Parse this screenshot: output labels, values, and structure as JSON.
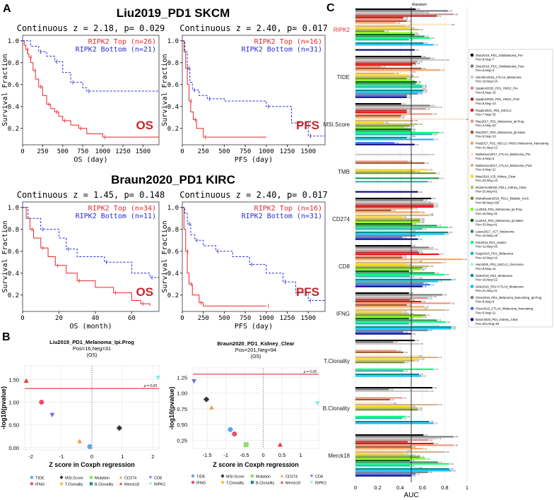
{
  "panel_labels": {
    "a": "A",
    "b": "B",
    "c": "C"
  },
  "colors": {
    "top": "#e8262a",
    "bottom": "#2b2bd6",
    "pline": "#d81e1e",
    "random": "#222222"
  },
  "chart_data": [
    {
      "type": "line",
      "panel": "A",
      "group_title": "Liu2019_PD1 SKCM",
      "title": "Continuous z = 2.18, p= 0.029",
      "xlabel": "OS (day)",
      "ylabel": "Survival Fraction",
      "xlim": [
        0,
        1700
      ],
      "ylim": [
        0.05,
        1.05
      ],
      "xticks": [
        0,
        250,
        500,
        750,
        1000,
        1250,
        1500
      ],
      "yticks": [
        0.2,
        0.4,
        0.6,
        0.8,
        1.0
      ],
      "endpoint": "OS",
      "series": [
        {
          "name": "RIPK2 Top (n=26)",
          "color": "#e8262a",
          "x": [
            0,
            20,
            40,
            60,
            80,
            100,
            130,
            160,
            200,
            250,
            300,
            350,
            400,
            450,
            500,
            600,
            700,
            800,
            1000,
            1700
          ],
          "y": [
            1,
            0.96,
            0.92,
            0.88,
            0.85,
            0.8,
            0.73,
            0.65,
            0.58,
            0.5,
            0.42,
            0.38,
            0.35,
            0.31,
            0.27,
            0.23,
            0.2,
            0.15,
            0.12,
            0.12
          ]
        },
        {
          "name": "RIPK2 Bottom (n=21)",
          "color": "#2b2bd6",
          "x": [
            0,
            100,
            200,
            300,
            400,
            500,
            600,
            750,
            800,
            1700
          ],
          "y": [
            1,
            0.95,
            0.9,
            0.86,
            0.81,
            0.71,
            0.62,
            0.57,
            0.54,
            0.54
          ]
        }
      ]
    },
    {
      "type": "line",
      "panel": "A",
      "title": "Continuous z = 2.40, p= 0.017",
      "xlabel": "PFS (day)",
      "ylabel": "Survival Fraction",
      "xlim": [
        0,
        1700
      ],
      "ylim": [
        0.05,
        1.05
      ],
      "xticks": [
        0,
        250,
        500,
        750,
        1000,
        1250,
        1500
      ],
      "yticks": [
        0.2,
        0.4,
        0.6,
        0.8,
        1.0
      ],
      "endpoint": "PFS",
      "series": [
        {
          "name": "RIPK2 Top (n=16)",
          "color": "#e8262a",
          "x": [
            0,
            20,
            40,
            60,
            80,
            100,
            130,
            170,
            250,
            1000
          ],
          "y": [
            1,
            0.9,
            0.75,
            0.6,
            0.45,
            0.35,
            0.28,
            0.2,
            0.12,
            0.12
          ]
        },
        {
          "name": "RIPK2 Bottom (n=31)",
          "color": "#2b2bd6",
          "x": [
            0,
            30,
            60,
            90,
            120,
            200,
            300,
            500,
            1000,
            1300,
            1500,
            1700
          ],
          "y": [
            1,
            0.9,
            0.75,
            0.62,
            0.55,
            0.5,
            0.47,
            0.45,
            0.4,
            0.25,
            0.13,
            0.13
          ]
        }
      ]
    },
    {
      "type": "line",
      "panel": "A",
      "group_title": "Braun2020_PD1 KIRC",
      "title": "Continuous z = 1.45, p= 0.148",
      "xlabel": "OS (month)",
      "ylabel": "Survival Fraction",
      "xlim": [
        0,
        75
      ],
      "ylim": [
        0.05,
        1.05
      ],
      "xticks": [
        0,
        20,
        40,
        60
      ],
      "yticks": [
        0.2,
        0.4,
        0.6,
        0.8,
        1.0
      ],
      "endpoint": "OS",
      "series": [
        {
          "name": "RIPK2 Top (n=34)",
          "color": "#e8262a",
          "x": [
            0,
            2,
            4,
            6,
            10,
            14,
            18,
            24,
            30,
            40,
            50,
            60,
            65,
            70
          ],
          "y": [
            1,
            0.9,
            0.8,
            0.72,
            0.63,
            0.55,
            0.47,
            0.4,
            0.33,
            0.27,
            0.22,
            0.15,
            0.12,
            0.1
          ]
        },
        {
          "name": "RIPK2 Bottom (n=11)",
          "color": "#2b2bd6",
          "x": [
            0,
            3,
            10,
            20,
            24,
            30,
            45,
            60,
            70,
            75
          ],
          "y": [
            1,
            0.9,
            0.8,
            0.72,
            0.62,
            0.55,
            0.5,
            0.4,
            0.36,
            0.36
          ]
        }
      ]
    },
    {
      "type": "line",
      "panel": "A",
      "title": "Continuous z = 2.40, p= 0.017",
      "xlabel": "PFS (day)",
      "ylabel": "Survival Fraction",
      "xlim": [
        0,
        1700
      ],
      "ylim": [
        0.05,
        1.05
      ],
      "xticks": [
        0,
        250,
        500,
        750,
        1000,
        1250,
        1500
      ],
      "yticks": [
        0.2,
        0.4,
        0.6,
        0.8,
        1.0
      ],
      "endpoint": "PFS",
      "series": [
        {
          "name": "RIPK2 Top (n=16)",
          "color": "#e8262a",
          "x": [
            0,
            20,
            40,
            60,
            80,
            120,
            200,
            250,
            1000
          ],
          "y": [
            1,
            0.8,
            0.6,
            0.4,
            0.3,
            0.2,
            0.13,
            0.1,
            0.1
          ]
        },
        {
          "name": "RIPK2 Bottom (n=31)",
          "color": "#2b2bd6",
          "x": [
            0,
            30,
            60,
            100,
            150,
            250,
            400,
            600,
            800,
            1000,
            1200,
            1350,
            1500,
            1700
          ],
          "y": [
            1,
            0.95,
            0.85,
            0.75,
            0.7,
            0.65,
            0.6,
            0.55,
            0.48,
            0.4,
            0.32,
            0.22,
            0.15,
            0.15
          ]
        }
      ]
    },
    {
      "type": "scatter",
      "panel": "B",
      "title": "Liu2019_PD1_Melanoma_Ipi.Prog",
      "subtitle": "Pos=16,Neg=31",
      "subtitle2": "(OS)",
      "xlabel": "Z score in Coxph regression",
      "ylabel": "-log10(pvalue)",
      "xlim": [
        -2.2,
        2.2
      ],
      "ylim": [
        -0.05,
        1.8
      ],
      "xticks": [
        -2,
        -1,
        0,
        1,
        2
      ],
      "yticks": [
        0.0,
        0.5,
        1.0,
        1.5
      ],
      "ytick_labels": [
        "0.00",
        "0.50",
        "1.00",
        "1.50"
      ],
      "threshold": {
        "y": 1.301,
        "label": "p = 0.05"
      },
      "points": [
        {
          "name": "TIDE",
          "x": -0.07,
          "y": 0.02
        },
        {
          "name": "IFNG",
          "x": -1.65,
          "y": 1.0
        },
        {
          "name": "MSI.Score",
          "x": 0.9,
          "y": 0.43
        },
        {
          "name": "CD274",
          "x": -0.4,
          "y": 0.14
        },
        {
          "name": "CD8",
          "x": -1.3,
          "y": 0.72
        },
        {
          "name": "Merck18",
          "x": -2.15,
          "y": 1.47
        },
        {
          "name": "RIPK2",
          "x": 2.17,
          "y": 1.54
        }
      ]
    },
    {
      "type": "scatter",
      "panel": "B",
      "title": "Braun2020_PD1_Kidney_Clear",
      "subtitle": "Pos=201,Neg=94",
      "subtitle2": "(OS)",
      "xlabel": "Z score in Coxph regression",
      "ylabel": "-log10(pvalue)",
      "xlim": [
        -1.88,
        1.48
      ],
      "ylim": [
        0.12,
        1.4
      ],
      "xticks": [
        -1.5,
        -1,
        -0.5,
        0,
        0.5,
        1
      ],
      "yticks": [
        0.25,
        0.5,
        0.75,
        1.0,
        1.25
      ],
      "ytick_labels": [
        "0.25",
        "0.50",
        "0.75",
        "1.00",
        "1.25"
      ],
      "threshold": {
        "y": 1.301,
        "label": "p = 0.05"
      },
      "points": [
        {
          "name": "TIDE",
          "x": -0.88,
          "y": 0.42
        },
        {
          "name": "IFNG",
          "x": -0.77,
          "y": 0.35
        },
        {
          "name": "MSI.Score",
          "x": -1.52,
          "y": 0.9
        },
        {
          "name": "Mutation",
          "x": -0.46,
          "y": 0.18
        },
        {
          "name": "CD274",
          "x": -1.38,
          "y": 0.77
        },
        {
          "name": "CD8",
          "x": -1.85,
          "y": 1.19
        },
        {
          "name": "Merck18",
          "x": 0.45,
          "y": 0.18
        },
        {
          "name": "RIPK2",
          "x": 1.45,
          "y": 0.84
        }
      ]
    },
    {
      "type": "bar",
      "panel": "C",
      "orientation": "horizontal",
      "xlabel": "AUC",
      "xlim": [
        0,
        1
      ],
      "xticks": [
        0,
        0.2,
        0.4,
        0.6,
        0.8,
        1
      ],
      "xtick_labels": [
        "0",
        "0.2",
        "0.4",
        "0.6",
        "0.8",
        "1"
      ],
      "reference": {
        "x": 0.5,
        "label": "Random"
      },
      "categories": [
        "RIPK2",
        "TIDE",
        "MSI.Score",
        "TMB",
        "CD274",
        "CD8",
        "IFNG",
        "T.Clonality",
        "B.Clonality",
        "Merck18"
      ],
      "highlight_category": "RIPK2",
      "series": [
        {
          "name": "Zhao2019_PD1_Glioblastoma_Pre",
          "legend_sub": "Pos=8,Neg=7",
          "color": "#000000"
        },
        {
          "name": "Zhao2019_PD1_Glioblastoma_Post",
          "legend_sub": "Pos=6,Neg=3",
          "color": "#777777"
        },
        {
          "name": "VanAllen2015_CTLA4_Melanoma",
          "legend_sub": "Pos=19,Neg=23",
          "color": "#c8c8c8"
        },
        {
          "name": "Uppaluri2020_PD1_HNSC_Pre",
          "legend_sub": "Pos=8,Neg=15",
          "color": "#c48f8f"
        },
        {
          "name": "Uppaluri2020_PD1_HNSC_Post",
          "legend_sub": "Pos=8,Neg=13",
          "color": "#b22222"
        },
        {
          "name": "Ruppin2021_PD1_NSCLC",
          "legend_sub": "Pos=7,Neg=15",
          "color": "#ee1111"
        },
        {
          "name": "Riaz2017_PD1_Melanoma_Ipi.Prog",
          "legend_sub": "Pos=4,Neg=22",
          "color": "#e9967a"
        },
        {
          "name": "Riaz2017_PD1_Melanoma_Ipi.Naive",
          "legend_sub": "Pos=6,Neg=19",
          "color": "#a0522d"
        },
        {
          "name": "Prat2017_PD1_NSCLC-HNSC-Melanoma_Nanostring",
          "legend_sub": "Pos=21,Neg=12",
          "color": "#f4a460"
        },
        {
          "name": "Nathanson2017_CTLA4_Melanoma_Pre",
          "legend_sub": "Pos=4,Neg=5",
          "color": "#fde4c4"
        },
        {
          "name": "Nathanson2017_CTLA4_Melanoma_Post",
          "legend_sub": "Pos=4,Neg=11",
          "color": "#d2b48c"
        },
        {
          "name": "Miao2018_ICB_Kidney_Clear",
          "legend_sub": "Pos=20,Neg=13",
          "color": "#ffd700"
        },
        {
          "name": "McDermott2018_PDL1_Kidney_Clear",
          "legend_sub": "Pos=20,Neg=61",
          "color": "#bdb76b"
        },
        {
          "name": "Mariathasan2018_PDL1_Bladder_mUC",
          "legend_sub": "Pos=68,Neg=230",
          "color": "#6b8e23"
        },
        {
          "name": "Liu2019_PD1_Melanoma_Ipi.Prog",
          "legend_sub": "Pos=16,Neg=31",
          "color": "#7cfc00"
        },
        {
          "name": "Liu2019_PD1_Melanoma_Ipi.Naive",
          "legend_sub": "Pos=33,Neg=41",
          "color": "#006400"
        },
        {
          "name": "Lauss2017_ACT_Melanoma",
          "legend_sub": "Pos=10,Neg=15",
          "color": "#2e8b57"
        },
        {
          "name": "Kim2018_PD1_Gastric",
          "legend_sub": "Pos=12,Neg=33",
          "color": "#00ff7f"
        },
        {
          "name": "Hugo2016_PD1_Melanoma",
          "legend_sub": "Pos=14,Neg=12",
          "color": "#20b2aa"
        },
        {
          "name": "Hwo2020_PD1_NSCLC_Oncomine",
          "legend_sub": "Pos=9,Neg=12",
          "color": "#afeeee"
        },
        {
          "name": "Gide2019_PD1_Melanoma",
          "legend_sub": "Pos=19,Neg=22",
          "color": "#008b8b"
        },
        {
          "name": "Gide2019_PD1+CTLA4_Melanoma",
          "legend_sub": "Pos=21,Neg=11",
          "color": "#00bfff"
        },
        {
          "name": "Chen2016_PD1_Melanoma_Nanostring_Ipi.Prog",
          "legend_sub": "Pos=6,Neg=9",
          "color": "#708090"
        },
        {
          "name": "Chen2016_CTLA4_Melanoma_Nanostring",
          "legend_sub": "Pos=5,Neg=11",
          "color": "#4169e1"
        },
        {
          "name": "Braun2020_PD1_Kidney_Clear",
          "legend_sub": "Pos=201,Neg=94",
          "color": "#000080"
        }
      ],
      "values": [
        [
          0.54,
          0.83,
          0.62,
          0.88,
          0.73,
          0.43,
          0.43,
          0.46,
          0.36,
          0.85,
          0.45,
          0.49,
          0.57,
          0.26,
          0.52,
          0.53,
          0.62,
          0.67,
          0.48,
          null,
          0.61,
          0.7,
          null,
          null,
          0.53
        ],
        [
          0.59,
          0.67,
          0.8,
          0.56,
          0.54,
          0.51,
          0.23,
          0.59,
          0.76,
          0.5,
          0.35,
          0.48,
          0.53,
          0.46,
          0.49,
          0.55,
          0.54,
          0.6,
          0.6,
          0.59,
          0.61,
          0.6,
          0.56,
          0.46,
          0.46
        ],
        [
          0.41,
          0.67,
          0.74,
          0.63,
          0.46,
          0.46,
          0.69,
          0.41,
          0.4,
          0.98,
          0.52,
          0.26,
          0.56,
          0.49,
          0.44,
          0.5,
          0.5,
          0.75,
          0.69,
          0.5,
          0.46,
          0.7,
          null,
          0.35,
          0.53
        ],
        [
          null,
          null,
          0.67,
          null,
          null,
          null,
          0.47,
          0.62,
          null,
          null,
          null,
          0.65,
          0.54,
          0.72,
          null,
          null,
          0.75,
          null,
          0.65,
          null,
          null,
          null,
          null,
          null,
          0.56
        ],
        [
          0.68,
          0.61,
          0.64,
          0.7,
          0.7,
          0.7,
          0.52,
          0.32,
          0.58,
          0.66,
          0.66,
          0.42,
          0.58,
          0.58,
          0.58,
          0.51,
          0.73,
          0.83,
          0.6,
          0.5,
          0.83,
          0.8,
          0.54,
          0.42,
          0.56
        ],
        [
          0.5,
          0.66,
          0.7,
          0.56,
          0.57,
          0.75,
          0.42,
          0.42,
          0.96,
          0.56,
          0.77,
          0.46,
          0.66,
          0.6,
          0.58,
          0.48,
          0.71,
          0.8,
          0.49,
          0.56,
          0.86,
          0.74,
          0.61,
          0.67,
          0.6
        ],
        [
          0.48,
          0.78,
          0.69,
          0.65,
          0.49,
          0.59,
          0.85,
          0.46,
          0.62,
          0.61,
          0.8,
          0.42,
          0.48,
          0.63,
          0.6,
          0.48,
          0.73,
          0.81,
          0.48,
          0.71,
          0.86,
          0.86,
          0.65,
          0.43,
          0.5
        ],
        [
          0.53,
          0.34,
          0.57,
          null,
          null,
          null,
          0.37,
          0.43,
          null,
          0.56,
          0.74,
          0.58,
          0.53,
          0.44,
          null,
          null,
          null,
          0.7,
          0.43,
          null,
          0.57,
          0.59,
          null,
          null,
          null
        ],
        [
          0.69,
          0.3,
          0.66,
          null,
          null,
          null,
          0.42,
          0.31,
          null,
          0.33,
          0.74,
          0.5,
          0.56,
          0.56,
          null,
          null,
          null,
          0.45,
          0.42,
          null,
          0.66,
          0.7,
          null,
          null,
          null
        ],
        [
          0.61,
          0.88,
          0.73,
          0.65,
          0.47,
          0.7,
          0.88,
          0.5,
          0.6,
          0.45,
          0.8,
          0.44,
          0.54,
          0.58,
          0.63,
          0.49,
          0.74,
          0.84,
          0.49,
          0.56,
          0.84,
          0.86,
          0.65,
          0.54,
          0.5
        ]
      ]
    }
  ],
  "scatter_legend": [
    {
      "name": "TIDE",
      "shape": "circle",
      "color": "#5aa7ef"
    },
    {
      "name": "IFNG",
      "shape": "circle",
      "color": "#ef4a6a"
    },
    {
      "name": "MSI.Score",
      "shape": "cross",
      "color": "#333333"
    },
    {
      "name": "T.Clonality",
      "shape": "cross",
      "color": "#e5c12a"
    },
    {
      "name": "Mutation",
      "shape": "square",
      "color": "#8ee06a"
    },
    {
      "name": "B.Clonality",
      "shape": "square",
      "color": "#1e8a80"
    },
    {
      "name": "CD274",
      "shape": "triangle",
      "color": "#f5a04a"
    },
    {
      "name": "Merck18",
      "shape": "triangle",
      "color": "#ee3b3b"
    },
    {
      "name": "CD8",
      "shape": "triangle-down",
      "color": "#6f6fe6"
    },
    {
      "name": "RIPK2",
      "shape": "triangle-down",
      "color": "#86ece6"
    }
  ]
}
